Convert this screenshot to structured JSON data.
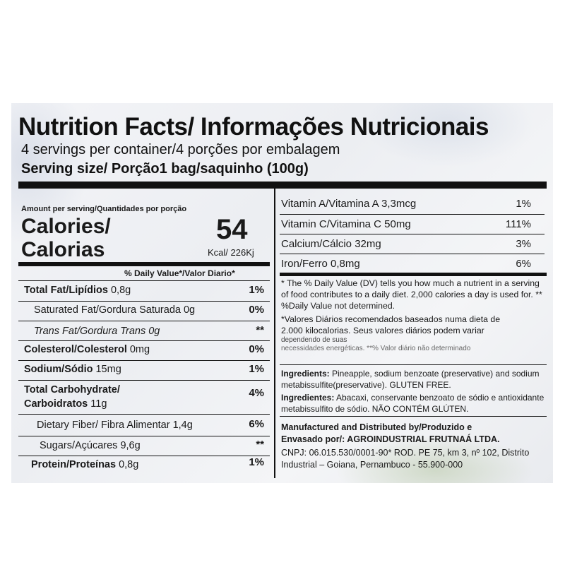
{
  "header": {
    "title": "Nutrition Facts/ Informações Nutricionais",
    "servings": "4 servings per container/4 porções por embalagem",
    "serving_size": "Serving size/ Porção1 bag/saquinho (100g)"
  },
  "calories": {
    "amount_per_serving": "Amount per serving/Quantidades por porção",
    "label_line1": "Calories/",
    "label_line2": "Calorias",
    "value": "54",
    "unit": "Kcal/ 226Kj"
  },
  "dv_header": "% Daily Value*/Valor Diario*",
  "nutrients": [
    {
      "label": "Total Fat/Lipídios",
      "amount": " 0,8g",
      "pct": "1%"
    },
    {
      "label": "Saturated Fat/Gordura Saturada 0g",
      "amount": "",
      "pct": "0%"
    },
    {
      "label": "Trans Fat/Gordura Trans 0g",
      "amount": "",
      "pct": "**"
    },
    {
      "label": "Colesterol/Colesterol",
      "amount": " 0mg",
      "pct": "0%"
    },
    {
      "label": "Sodium/Sódio",
      "amount": " 15mg",
      "pct": "1%"
    },
    {
      "label": "Total Carbohydrate/",
      "amount": "",
      "pct": "4%"
    },
    {
      "label": "Carboidratos",
      "amount": " 11g",
      "pct": ""
    },
    {
      "label": "Dietary Fiber/ Fibra Alimentar 1,4g",
      "amount": "",
      "pct": "6%"
    },
    {
      "label": "Sugars/Açúcares 9,6g",
      "amount": "",
      "pct": "**"
    },
    {
      "label": "Protein/Proteínas",
      "amount": " 0,8g",
      "pct": "1%"
    }
  ],
  "vitamins": [
    {
      "label": "Vitamin A/Vitamina A 3,3mcg",
      "pct": "1%"
    },
    {
      "label": "Vitamin C/Vitamina C 50mg",
      "pct": "111%"
    },
    {
      "label": "Calcium/Cálcio 32mg",
      "pct": "3%"
    },
    {
      "label": "Iron/Ferro 0,8mg",
      "pct": "6%"
    }
  ],
  "footnotes": {
    "english": "* The % Daily Value (DV) tells you how much a nutrient in a serving of food contributes to a daily diet. 2,000 calories a day is used for.  ** %Daily Value not determined.",
    "portuguese_line1": "*Valores Diários recomendados baseados numa dieta de",
    "portuguese_line2": "2.000 kilocalorias. Seus valores diários podem variar",
    "portuguese_line3": "dependendo de suas",
    "portuguese_line4": "necessidades energéticas. **% Valor diário não determinado"
  },
  "ingredients": {
    "en_label": "Ingredients:",
    "en_text": " Pineapple, sodium benzoate (preservative) and sodium metabissulfite(preservative). GLUTEN FREE.",
    "pt_label": "Ingredientes:",
    "pt_text": " Abacaxi, conservante benzoato de sódio e antioxidante metabissulfito de sódio. NÃO CONTÉM GLÚTEN."
  },
  "manufacturer": {
    "line1": "Manufactured and Distributed by/Produzido e",
    "line2_label": "Envasado por/:",
    "line2_company": " AGROINDUSTRIAL FRUTNAÁ LTDA.",
    "line3": "CNPJ: 06.015.530/0001-90* ROD. PE 75, km 3, nº 102, Distrito",
    "line4": "Industrial – Goiana, Pernambuco - 55.900-000"
  }
}
